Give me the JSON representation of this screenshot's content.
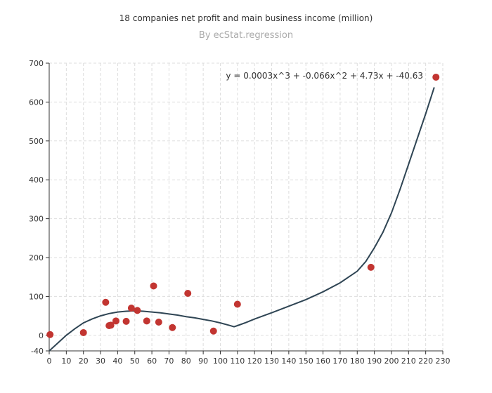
{
  "chart_data": {
    "type": "scatter",
    "title": "18 companies net profit and main business income (million)",
    "subtitle": "By ecStat.regression",
    "xlabel": "",
    "ylabel": "",
    "xlim": [
      0,
      230
    ],
    "ylim": [
      -40,
      700
    ],
    "x_ticks": [
      0,
      10,
      20,
      30,
      40,
      50,
      60,
      70,
      80,
      90,
      100,
      110,
      120,
      130,
      140,
      150,
      160,
      170,
      180,
      190,
      200,
      210,
      220,
      230
    ],
    "y_ticks": [
      -40,
      0,
      100,
      200,
      300,
      400,
      500,
      600,
      700
    ],
    "grid": true,
    "points": [
      {
        "x": 0.5,
        "y": 2
      },
      {
        "x": 20,
        "y": 7
      },
      {
        "x": 33,
        "y": 85
      },
      {
        "x": 35,
        "y": 25
      },
      {
        "x": 36,
        "y": 26
      },
      {
        "x": 39,
        "y": 37
      },
      {
        "x": 45,
        "y": 36
      },
      {
        "x": 48,
        "y": 70
      },
      {
        "x": 51.5,
        "y": 64
      },
      {
        "x": 57,
        "y": 37
      },
      {
        "x": 61,
        "y": 127
      },
      {
        "x": 64,
        "y": 34
      },
      {
        "x": 72,
        "y": 20
      },
      {
        "x": 81,
        "y": 108
      },
      {
        "x": 96,
        "y": 11
      },
      {
        "x": 110,
        "y": 80
      },
      {
        "x": 188,
        "y": 175
      },
      {
        "x": 226,
        "y": 664
      }
    ],
    "regression": {
      "equation": "y = 0.0003x^3 + -0.066x^2 + 4.73x + -40.63",
      "curve": [
        [
          0,
          -40
        ],
        [
          5,
          -20
        ],
        [
          10,
          0
        ],
        [
          15,
          17
        ],
        [
          20,
          32
        ],
        [
          25,
          42
        ],
        [
          30,
          50
        ],
        [
          35,
          56
        ],
        [
          40,
          60
        ],
        [
          45,
          62
        ],
        [
          50,
          63
        ],
        [
          55,
          62
        ],
        [
          60,
          60
        ],
        [
          65,
          58
        ],
        [
          70,
          55
        ],
        [
          75,
          52
        ],
        [
          80,
          48
        ],
        [
          85,
          45
        ],
        [
          90,
          41
        ],
        [
          95,
          37
        ],
        [
          100,
          32
        ],
        [
          105,
          26
        ],
        [
          108,
          22
        ],
        [
          110,
          25
        ],
        [
          115,
          33
        ],
        [
          120,
          42
        ],
        [
          130,
          58
        ],
        [
          140,
          75
        ],
        [
          150,
          92
        ],
        [
          160,
          112
        ],
        [
          170,
          135
        ],
        [
          180,
          165
        ],
        [
          185,
          190
        ],
        [
          190,
          225
        ],
        [
          195,
          265
        ],
        [
          200,
          315
        ],
        [
          205,
          375
        ],
        [
          210,
          440
        ],
        [
          215,
          505
        ],
        [
          220,
          570
        ],
        [
          225,
          638
        ]
      ]
    },
    "colors": {
      "point": "#c23531",
      "line": "#2f4554",
      "grid": "#dddddd"
    }
  }
}
